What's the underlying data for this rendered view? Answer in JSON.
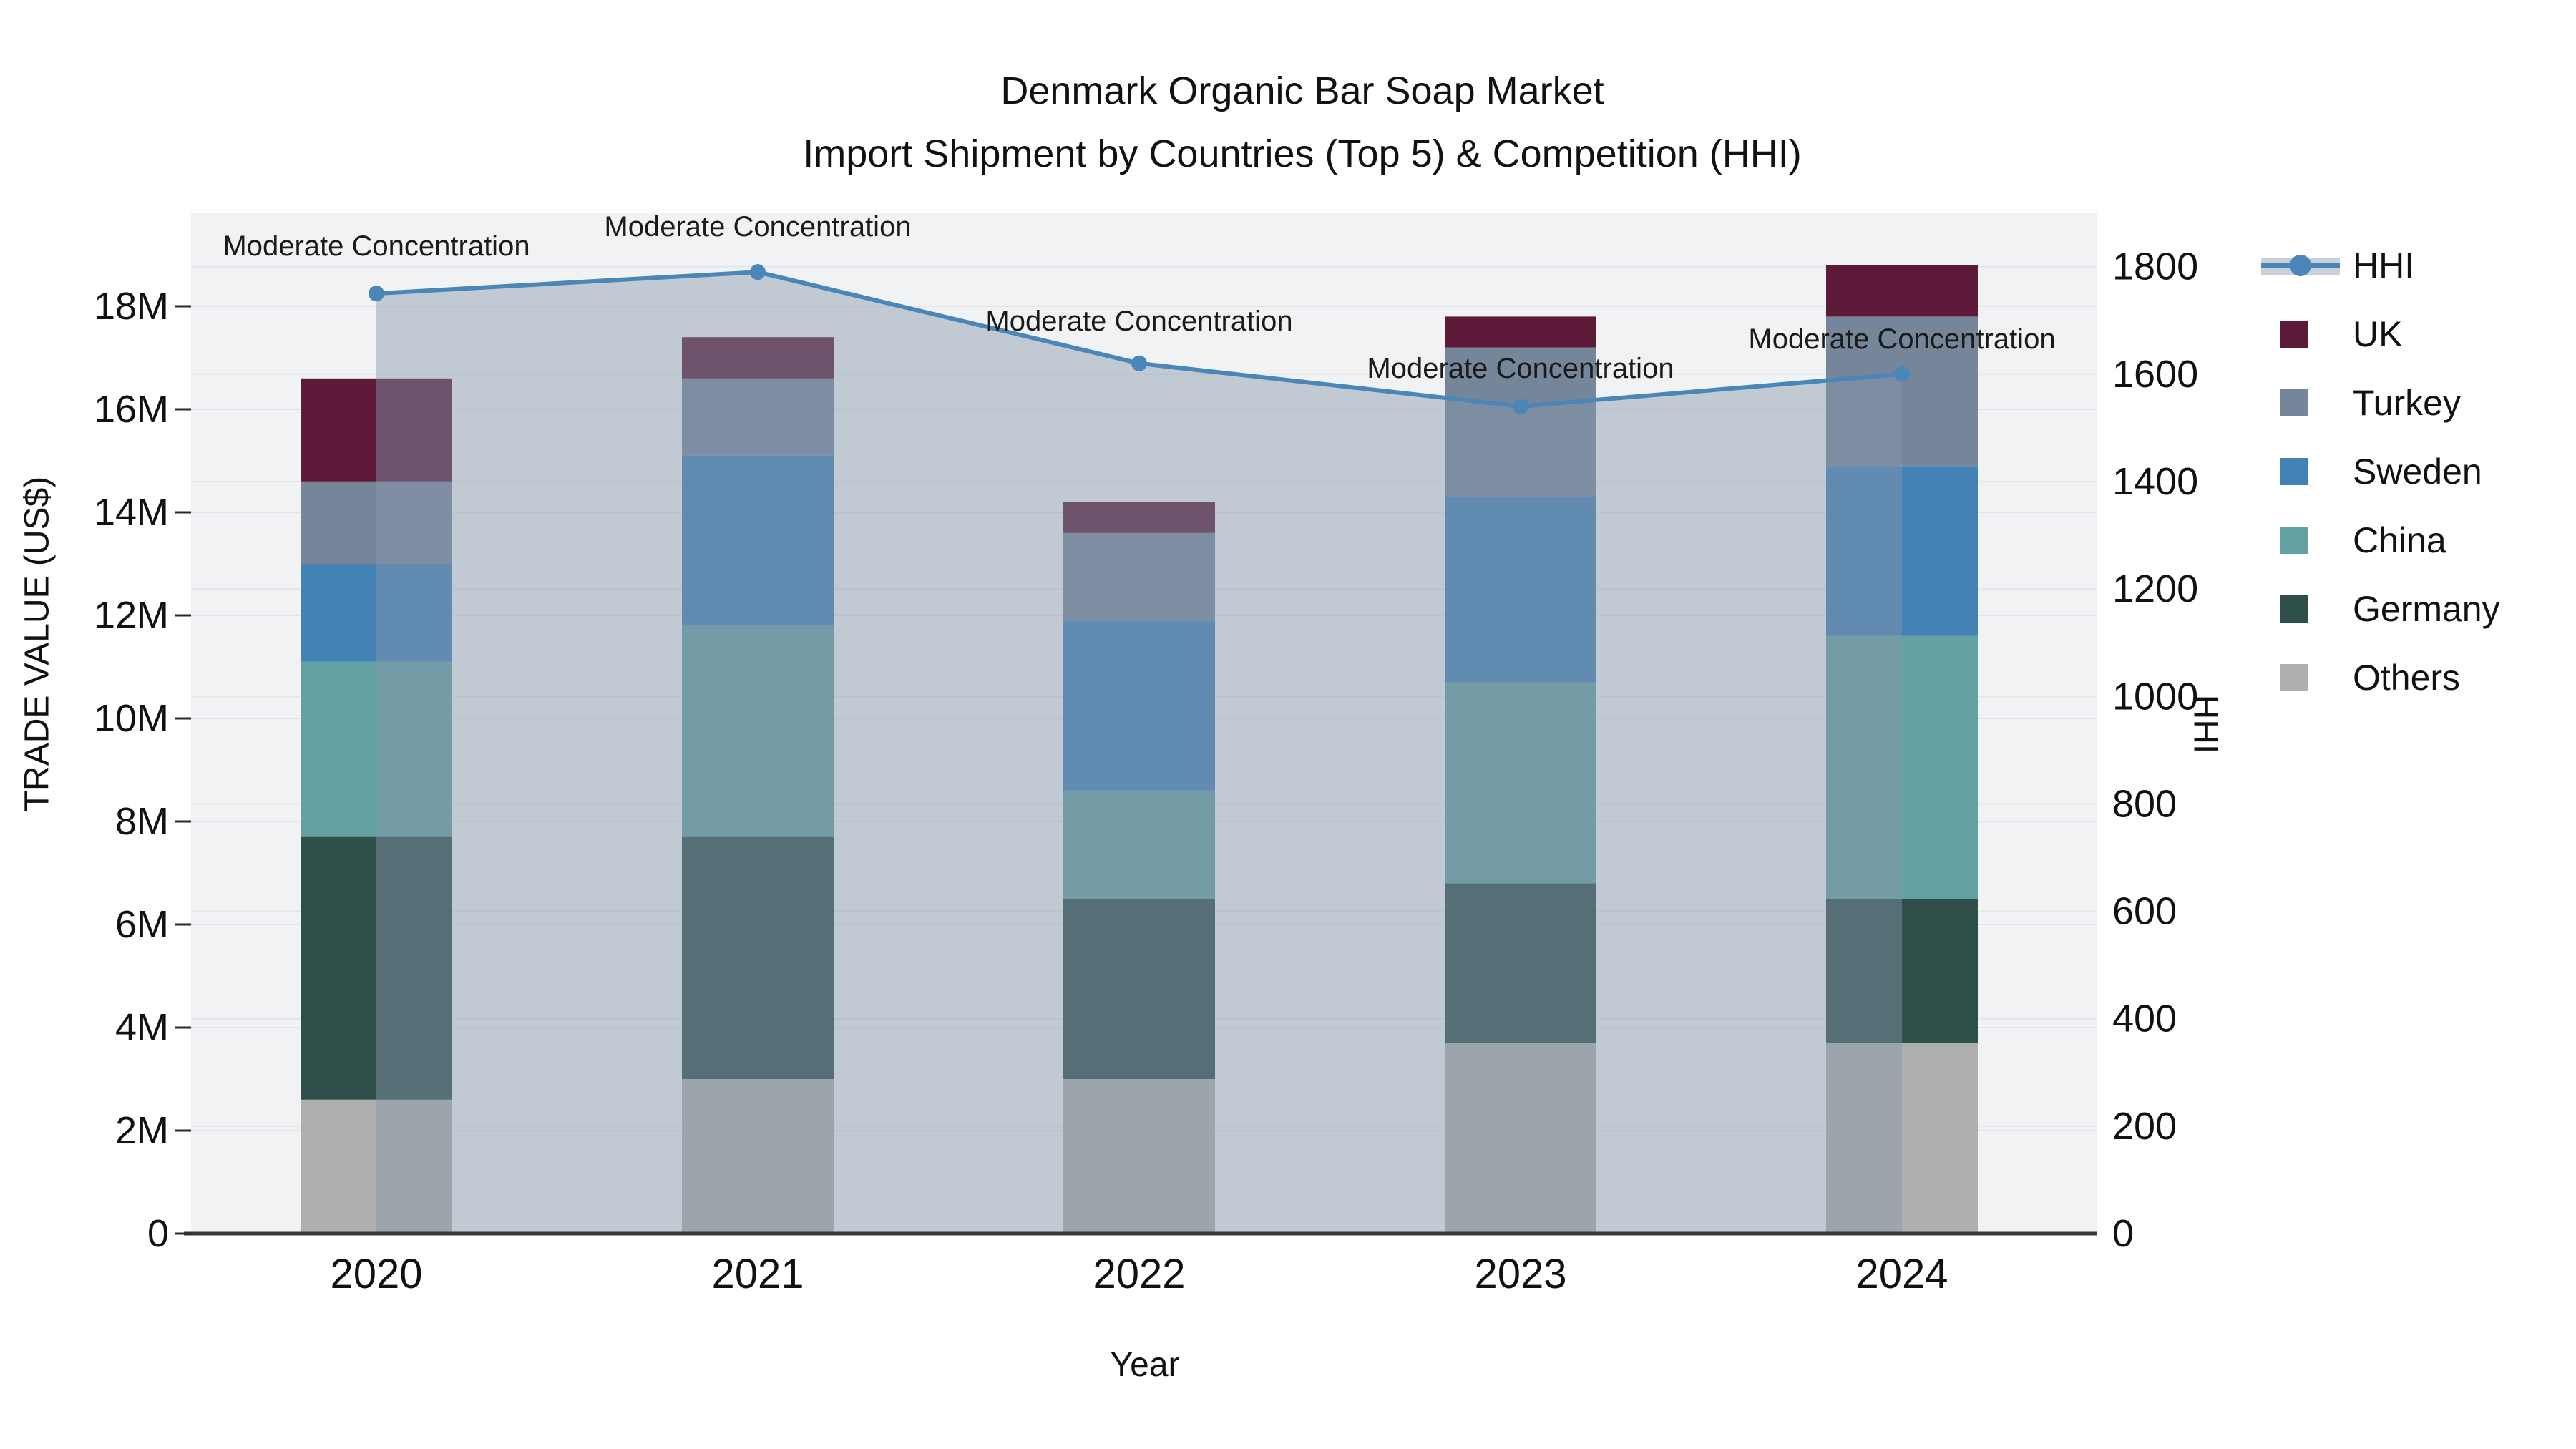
{
  "title": {
    "line1": "Denmark Organic Bar Soap Market",
    "line2": "Import Shipment by Countries (Top 5) & Competition (HHI)"
  },
  "chart_data": {
    "type": "bar",
    "subtype": "stacked-bars-with-dual-axis-line",
    "title": "Denmark Organic Bar Soap Market — Import Shipment by Countries (Top 5) & Competition (HHI)",
    "categories": [
      "2020",
      "2021",
      "2022",
      "2023",
      "2024"
    ],
    "value_unit": "million US$",
    "series": [
      {
        "name": "Others",
        "color": "#adb0ac",
        "values": [
          2.6,
          3.0,
          3.0,
          3.7,
          3.7
        ]
      },
      {
        "name": "Germany",
        "color": "#2f4f4b",
        "values": [
          5.1,
          4.7,
          3.5,
          3.1,
          2.8
        ]
      },
      {
        "name": "China",
        "color": "#63a1a2",
        "values": [
          3.4,
          4.1,
          2.1,
          3.9,
          5.1
        ]
      },
      {
        "name": "Sweden",
        "color": "#4382b5",
        "values": [
          1.9,
          3.3,
          3.3,
          3.6,
          3.3
        ]
      },
      {
        "name": "Turkey",
        "color": "#75859a",
        "values": [
          1.6,
          1.5,
          1.7,
          2.9,
          2.9
        ]
      },
      {
        "name": "UK",
        "color": "#5c1a38",
        "values": [
          2.0,
          0.8,
          0.6,
          0.6,
          1.0
        ]
      }
    ],
    "line_series": {
      "name": "HHI",
      "color": "#4a86b8",
      "fill": "rgba(136,150,173,0.45)",
      "values": [
        1750,
        1790,
        1620,
        1540,
        1600
      ]
    },
    "annotations": [
      "Moderate Concentration",
      "Moderate Concentration",
      "Moderate Concentration",
      "Moderate Concentration",
      "Moderate Concentration"
    ],
    "y_left": {
      "label": "TRADE VALUE (US$)",
      "ticks": [
        "0",
        "2M",
        "4M",
        "6M",
        "8M",
        "10M",
        "12M",
        "14M",
        "16M",
        "18M"
      ],
      "tick_values": [
        0,
        2,
        4,
        6,
        8,
        10,
        12,
        14,
        16,
        18
      ]
    },
    "y_right": {
      "label": "HHI",
      "ticks": [
        "0",
        "200",
        "400",
        "600",
        "800",
        "1000",
        "1200",
        "1400",
        "1600",
        "1800"
      ],
      "tick_values": [
        0,
        200,
        400,
        600,
        800,
        1000,
        1200,
        1400,
        1600,
        1800
      ]
    },
    "x_axis": {
      "label": "Year"
    },
    "grid": true,
    "plot_bg": "#f1f2f3",
    "legend_position": "right"
  },
  "legend": {
    "items": [
      {
        "label": "HHI",
        "type": "line",
        "color": "#4a86b8"
      },
      {
        "label": "UK",
        "type": "swatch",
        "color": "#5c1a38"
      },
      {
        "label": "Turkey",
        "type": "swatch",
        "color": "#75859a"
      },
      {
        "label": "Sweden",
        "type": "swatch",
        "color": "#4382b5"
      },
      {
        "label": "China",
        "type": "swatch",
        "color": "#63a1a2"
      },
      {
        "label": "Germany",
        "type": "swatch",
        "color": "#2f4f4b"
      },
      {
        "label": "Others",
        "type": "swatch",
        "color": "#adb0ac"
      }
    ]
  }
}
